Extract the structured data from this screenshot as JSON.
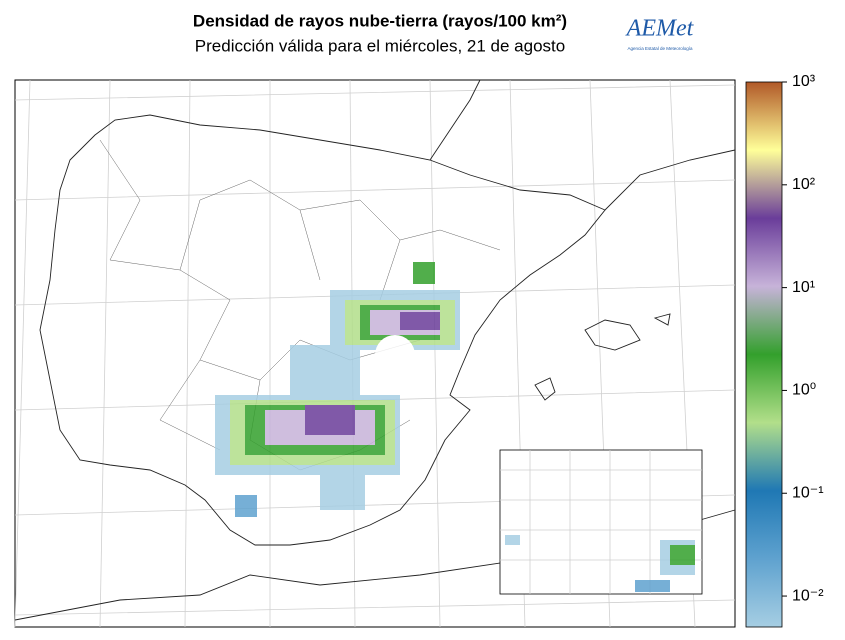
{
  "header": {
    "title": "Densidad de rayos nube-tierra (rayos/100 km²)",
    "subtitle": "Predicción válida para el miércoles, 21 de agosto",
    "logo": {
      "name": "AEMet",
      "caption": "Agencia Estatal de Meteorología"
    }
  },
  "colorbar": {
    "scale": "log",
    "lim": [
      0.005,
      1000
    ],
    "colors": [
      "#a6cee3",
      "#5fa2cf",
      "#1f78b4",
      "#b2df8a",
      "#33a02c",
      "#c7b3d9",
      "#6a3d9a",
      "#ffff99",
      "#b15928"
    ],
    "ticks": [
      {
        "value": 0.01,
        "label": "10⁻²"
      },
      {
        "value": 0.1,
        "label": "10⁻¹"
      },
      {
        "value": 1,
        "label": "10⁰"
      },
      {
        "value": 10,
        "label": "10¹"
      },
      {
        "value": 100,
        "label": "10²"
      },
      {
        "value": 1000,
        "label": "10³"
      }
    ]
  }
}
